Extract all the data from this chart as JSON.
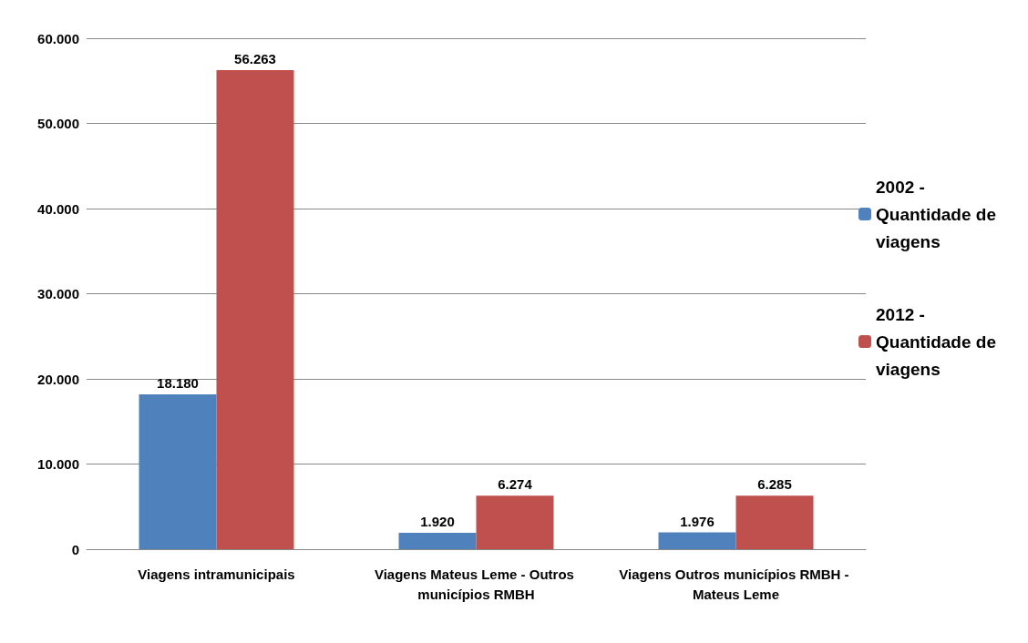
{
  "chart_data": {
    "type": "bar",
    "categories": [
      "Viagens intramunicipais",
      "Viagens Mateus Leme - Outros municípios RMBH",
      "Viagens Outros municípios RMBH - Mateus Leme"
    ],
    "series": [
      {
        "name": "2002 - Quantidade de viagens",
        "color": "#4f81bd",
        "values": [
          18180,
          1920,
          1976
        ],
        "value_labels": [
          "18.180",
          "1.920",
          "1.976"
        ]
      },
      {
        "name": "2012 - Quantidade de viagens",
        "color": "#c0504d",
        "values": [
          56263,
          6274,
          6285
        ],
        "value_labels": [
          "56.263",
          "6.274",
          "6.285"
        ]
      }
    ],
    "ylim": [
      0,
      60000
    ],
    "yticks": [
      0,
      {
        "value": 10000,
        "label": "10.000"
      },
      {
        "value": 20000,
        "label": "20.000"
      },
      {
        "value": 30000,
        "label": "30.000"
      },
      {
        "value": 40000,
        "label": "40.000"
      },
      {
        "value": 50000,
        "label": "50.000"
      },
      {
        "value": 60000,
        "label": "60.000"
      }
    ],
    "grid": "y",
    "legend": "right"
  }
}
